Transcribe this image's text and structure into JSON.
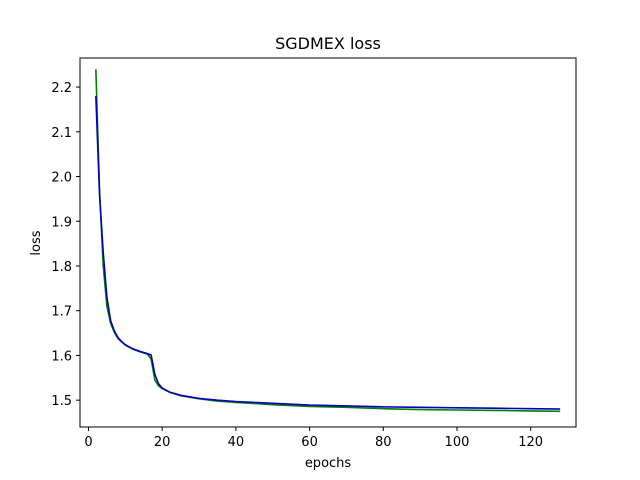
{
  "chart_data": {
    "type": "line",
    "title": "SGDMEX loss",
    "xlabel": "epochs",
    "ylabel": "loss",
    "xlim": [
      -2.3,
      132.3
    ],
    "ylim": [
      1.44,
      2.265
    ],
    "xticks": [
      0,
      20,
      40,
      60,
      80,
      100,
      120
    ],
    "xtick_labels": [
      "0",
      "20",
      "40",
      "60",
      "80",
      "100",
      "120"
    ],
    "yticks": [
      1.5,
      1.6,
      1.7,
      1.8,
      1.9,
      2.0,
      2.1,
      2.2
    ],
    "ytick_labels": [
      "1.5",
      "1.6",
      "1.7",
      "1.8",
      "1.9",
      "2.0",
      "2.1",
      "2.2"
    ],
    "grid": false,
    "series": [
      {
        "color": "#008000",
        "x": [
          2,
          3,
          4,
          5,
          6,
          7,
          8,
          9,
          10,
          12,
          14,
          16,
          17,
          18,
          19,
          20,
          22,
          25,
          30,
          35,
          40,
          50,
          60,
          70,
          80,
          90,
          100,
          110,
          120,
          128
        ],
        "y": [
          2.24,
          1.97,
          1.8,
          1.71,
          1.672,
          1.652,
          1.638,
          1.63,
          1.623,
          1.614,
          1.608,
          1.603,
          1.592,
          1.545,
          1.532,
          1.526,
          1.518,
          1.51,
          1.503,
          1.498,
          1.495,
          1.49,
          1.486,
          1.484,
          1.481,
          1.479,
          1.478,
          1.477,
          1.476,
          1.475
        ]
      },
      {
        "color": "#0000bf",
        "x": [
          2,
          3,
          4,
          5,
          6,
          7,
          8,
          9,
          10,
          12,
          14,
          16,
          17,
          18,
          19,
          20,
          22,
          25,
          30,
          35,
          40,
          50,
          60,
          70,
          80,
          90,
          100,
          110,
          120,
          128
        ],
        "y": [
          2.18,
          1.96,
          1.83,
          1.73,
          1.678,
          1.655,
          1.64,
          1.631,
          1.624,
          1.615,
          1.609,
          1.604,
          1.601,
          1.558,
          1.537,
          1.527,
          1.518,
          1.511,
          1.504,
          1.5,
          1.497,
          1.493,
          1.489,
          1.487,
          1.485,
          1.484,
          1.483,
          1.482,
          1.481,
          1.48
        ]
      }
    ]
  }
}
